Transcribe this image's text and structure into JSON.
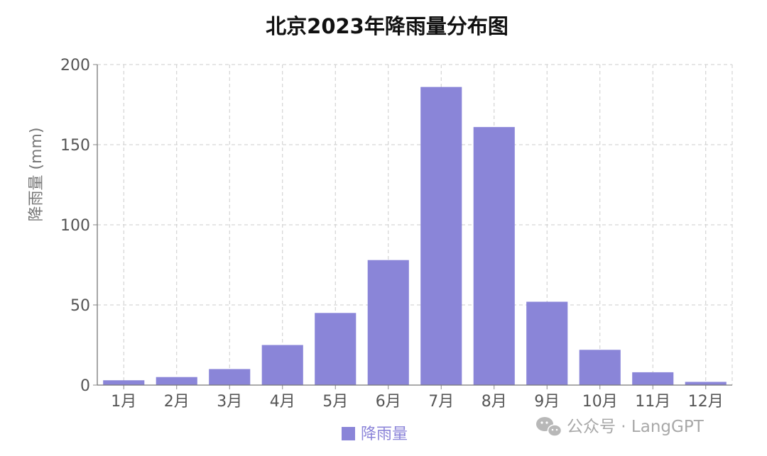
{
  "chart_data": {
    "type": "bar",
    "title": "北京2023年降雨量分布图",
    "ylabel": "降雨量 (mm)",
    "xlabel": "",
    "categories": [
      "1月",
      "2月",
      "3月",
      "4月",
      "5月",
      "6月",
      "7月",
      "8月",
      "9月",
      "10月",
      "11月",
      "12月"
    ],
    "series": [
      {
        "name": "降雨量",
        "values": [
          3,
          5,
          10,
          25,
          45,
          78,
          186,
          161,
          52,
          22,
          8,
          2
        ],
        "color": "#8a85d8"
      }
    ],
    "ylim": [
      0,
      200
    ],
    "yticks": [
      0,
      50,
      100,
      150,
      200
    ],
    "grid": true,
    "legend_position": "bottom"
  },
  "watermark": {
    "text": "公众号 · LangGPT",
    "icon": "wechat-icon"
  }
}
